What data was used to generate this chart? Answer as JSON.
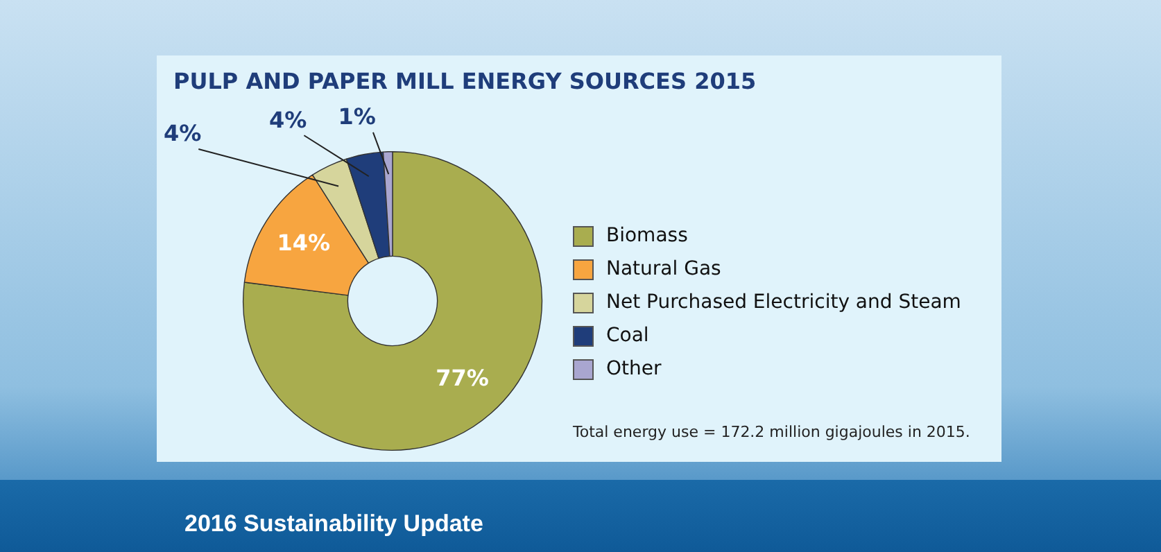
{
  "chart_data": {
    "type": "donut",
    "title": "PULP AND PAPER MILL ENERGY SOURCES 2015",
    "categories": [
      "Biomass",
      "Natural Gas",
      "Net Purchased Electricity and Steam",
      "Coal",
      "Other"
    ],
    "values": [
      77,
      14,
      4,
      4,
      1
    ],
    "colors": [
      "#a9ad4f",
      "#f7a540",
      "#d6d59c",
      "#1f3d7a",
      "#a9a6d0"
    ],
    "value_labels": [
      "77%",
      "14%",
      "4%",
      "4%",
      "1%"
    ],
    "legend": "right",
    "annotations": [
      "Total energy use = 172.2 million gigajoules in 2015.",
      "2016 Sustainability Update"
    ]
  }
}
